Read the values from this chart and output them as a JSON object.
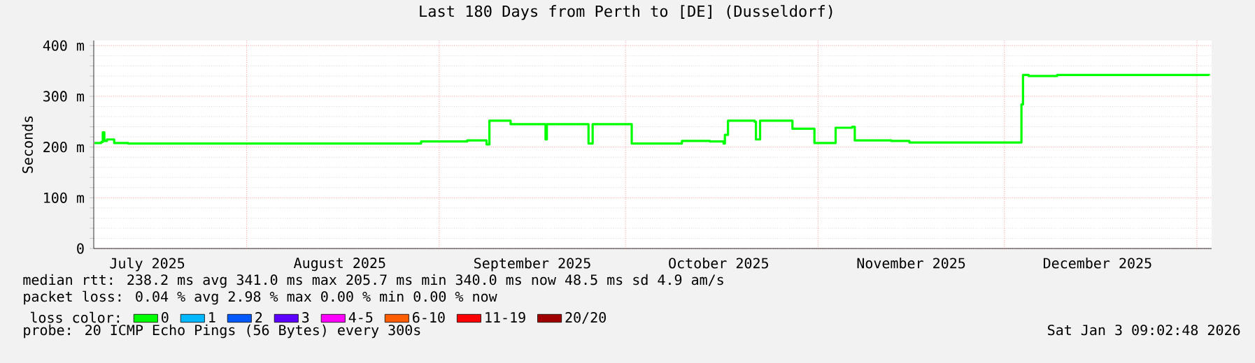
{
  "chart_data": {
    "type": "step",
    "title": "Last 180 Days from Perth to [DE] (Dusseldorf)",
    "ylabel": "Seconds",
    "xlim": [
      "2025-07-07T09:00",
      "2026-01-03T09:00"
    ],
    "xticks": [
      {
        "value": "2025-07-16",
        "label": "July 2025"
      },
      {
        "value": "2025-08-01",
        "label": null
      },
      {
        "value": "2025-08-16",
        "label": "August 2025"
      },
      {
        "value": "2025-09-01",
        "label": null
      },
      {
        "value": "2025-09-16",
        "label": "September 2025"
      },
      {
        "value": "2025-10-01",
        "label": null
      },
      {
        "value": "2025-10-16",
        "label": "October 2025"
      },
      {
        "value": "2025-11-01",
        "label": null
      },
      {
        "value": "2025-11-16",
        "label": "November 2025"
      },
      {
        "value": "2025-12-01",
        "label": null
      },
      {
        "value": "2025-12-16",
        "label": "December 2025"
      },
      {
        "value": "2026-01-01",
        "label": null
      }
    ],
    "ylim": [
      0,
      410
    ],
    "yticks": [
      0,
      {
        "value": 100,
        "label": "100 m"
      },
      {
        "value": 200,
        "label": "200 m"
      },
      {
        "value": 300,
        "label": "300 m"
      },
      {
        "value": 400,
        "label": "400 m"
      }
    ],
    "grid": true,
    "legend": "bottom",
    "legend_title": "loss color:",
    "annotations": [
      "median rtt: 238.2 ms avg 341.0 ms max 205.7 ms min 340.0 ms now 48.5 ms sd 4.9 am/s",
      "packet loss: 0.04 % avg 2.98 % max 0.00 % min 0.00 % now",
      "probe: 20 ICMP Echo Pings (56 Bytes) every 300s",
      "Sat Jan 3 09:02:48 2026"
    ],
    "series": [
      {
        "name": "0",
        "color": "#00ff00",
        "x": [
          "2025-07-07T12:00",
          "2025-07-08T14:00",
          "2025-07-08T20:00",
          "2025-07-09T02:00",
          "2025-07-09T12:00",
          "2025-07-10T16:00",
          "2025-07-12T22:00",
          "2025-08-29T02:00",
          "2025-09-05T12:00",
          "2025-09-08T15:00",
          "2025-09-09T02:00",
          "2025-09-12T06:00",
          "2025-09-12T12:00",
          "2025-09-17T22:00",
          "2025-09-18T03:00",
          "2025-09-18T08:00",
          "2025-09-24T14:00",
          "2025-09-25T01:00",
          "2025-09-25T17:00",
          "2025-10-01T13:00",
          "2025-10-02T00:00",
          "2025-10-10T02:00",
          "2025-10-14T14:00",
          "2025-10-16T19:00",
          "2025-10-17T00:00",
          "2025-10-17T12:00",
          "2025-10-21T19:00",
          "2025-10-22T00:00",
          "2025-10-22T16:00",
          "2025-10-27T15:00",
          "2025-10-27T21:00",
          "2025-10-31T05:00",
          "2025-10-31T10:00",
          "2025-11-03T14:00",
          "2025-11-03T20:00",
          "2025-11-06T12:00",
          "2025-11-06T22:00",
          "2025-11-12T19:00",
          "2025-11-15T17:00",
          "2025-12-03T12:00",
          "2025-12-03T18:00",
          "2025-12-04T00:00",
          "2025-12-04T22:00",
          "2025-12-08T22:00",
          "2025-12-09T12:00",
          "2026-01-02T23:00"
        ],
        "values": [
          208,
          210,
          229,
          212,
          215,
          208,
          207,
          211,
          213,
          205,
          252,
          252,
          245,
          245,
          215,
          245,
          245,
          207,
          245,
          245,
          207,
          212,
          211,
          207,
          224,
          252,
          250,
          215,
          252,
          252,
          236,
          236,
          208,
          208,
          238,
          240,
          213,
          212,
          209,
          209,
          284,
          342,
          340,
          340,
          342,
          341
        ]
      },
      {
        "name": "1",
        "color": "#00b8ff"
      },
      {
        "name": "2",
        "color": "#0059ff"
      },
      {
        "name": "3",
        "color": "#5e00ff"
      },
      {
        "name": "4-5",
        "color": "#ff00ff"
      },
      {
        "name": "6-10",
        "color": "#ff5e00"
      },
      {
        "name": "11-19",
        "color": "#ff0000"
      },
      {
        "name": "20/20",
        "color": "#a10000"
      }
    ]
  }
}
